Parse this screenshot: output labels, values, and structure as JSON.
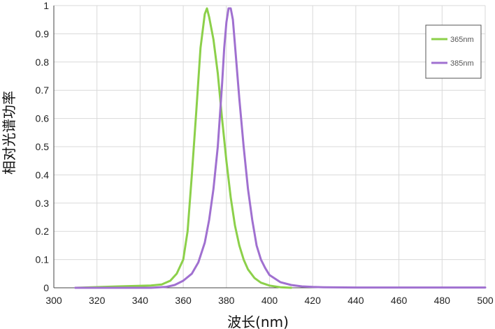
{
  "chart_data": {
    "type": "line",
    "xlabel": "波长(nm)",
    "ylabel": "相对光谱功率",
    "xlim": [
      300,
      500
    ],
    "ylim": [
      0,
      1
    ],
    "xticks": [
      "300",
      "320",
      "340",
      "360",
      "380",
      "400",
      "420",
      "440",
      "460",
      "480",
      "500"
    ],
    "yticks": [
      "0",
      "0.1",
      "0.2",
      "0.3",
      "0.4",
      "0.5",
      "0.6",
      "0.7",
      "0.8",
      "0.9",
      "1"
    ],
    "grid": true,
    "legend_position": "top-right",
    "series": [
      {
        "name": "365nm",
        "color": "#8cd04a",
        "x": [
          310,
          330,
          345,
          350,
          354,
          357,
          360,
          362,
          364,
          366,
          368,
          370,
          371,
          372,
          374,
          376,
          378,
          380,
          382,
          384,
          386,
          388,
          390,
          393,
          396,
          400,
          405,
          410
        ],
        "y": [
          0.0,
          0.005,
          0.008,
          0.012,
          0.025,
          0.05,
          0.1,
          0.2,
          0.4,
          0.62,
          0.85,
          0.97,
          0.99,
          0.96,
          0.88,
          0.76,
          0.6,
          0.45,
          0.32,
          0.22,
          0.15,
          0.1,
          0.065,
          0.035,
          0.018,
          0.008,
          0.002,
          0.0
        ]
      },
      {
        "name": "385nm",
        "color": "#a070d0",
        "x": [
          310,
          345,
          352,
          356,
          360,
          364,
          367,
          370,
          372,
          374,
          376,
          378,
          379,
          380,
          381,
          382,
          383,
          384,
          386,
          388,
          390,
          392,
          394,
          396,
          398,
          400,
          405,
          410,
          415,
          420,
          425,
          440,
          500
        ],
        "y": [
          0.0,
          0.0,
          0.003,
          0.01,
          0.025,
          0.05,
          0.09,
          0.16,
          0.24,
          0.35,
          0.5,
          0.72,
          0.85,
          0.94,
          0.99,
          0.99,
          0.95,
          0.86,
          0.67,
          0.5,
          0.35,
          0.24,
          0.15,
          0.1,
          0.07,
          0.045,
          0.02,
          0.01,
          0.005,
          0.003,
          0.002,
          0.001,
          0.001
        ]
      }
    ]
  }
}
